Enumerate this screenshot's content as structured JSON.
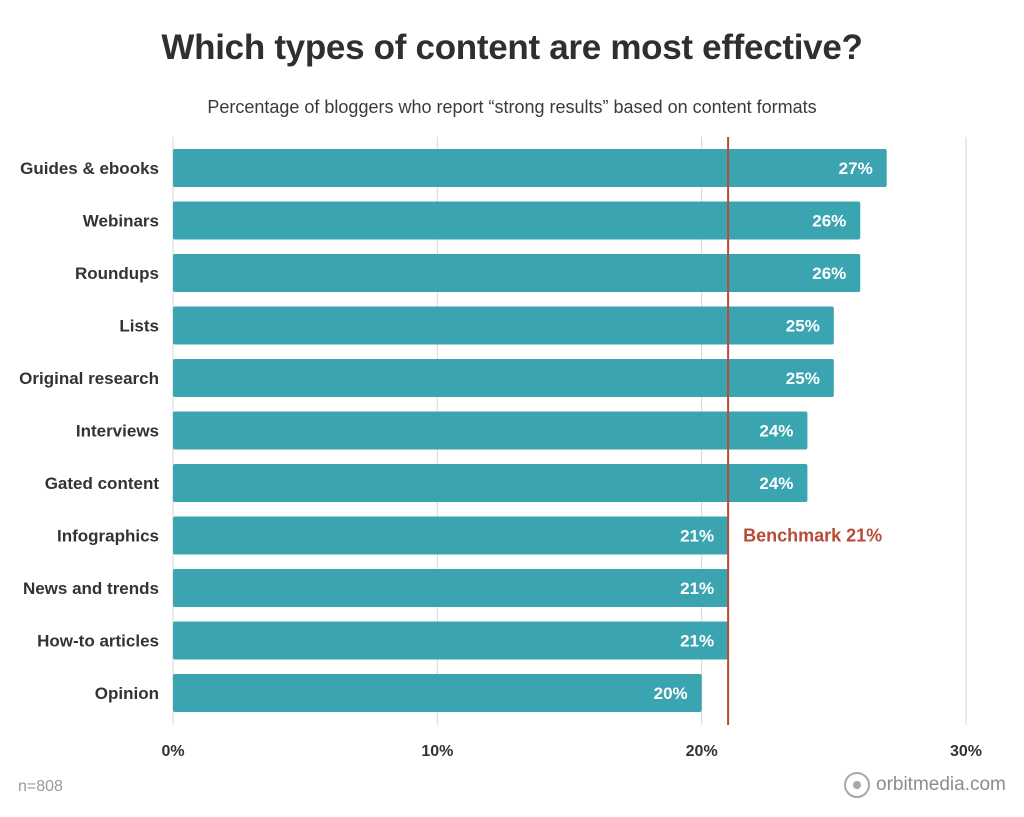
{
  "chart_data": {
    "type": "bar",
    "orientation": "horizontal",
    "title": "Which types of content are most effective?",
    "subtitle": "Percentage of bloggers who report “strong results” based on content formats",
    "categories": [
      "Guides & ebooks",
      "Webinars",
      "Roundups",
      "Lists",
      "Original research",
      "Interviews",
      "Gated content",
      "Infographics",
      "News and trends",
      "How-to articles",
      "Opinion"
    ],
    "values": [
      27,
      26,
      26,
      25,
      25,
      24,
      24,
      21,
      21,
      21,
      20
    ],
    "value_labels": [
      "27%",
      "26%",
      "26%",
      "25%",
      "25%",
      "24%",
      "24%",
      "21%",
      "21%",
      "21%",
      "20%"
    ],
    "xlim": [
      0,
      30
    ],
    "x_ticks": [
      0,
      10,
      20,
      30
    ],
    "x_tick_labels": [
      "0%",
      "10%",
      "20%",
      "30%"
    ],
    "benchmark": {
      "value": 21,
      "label": "Benchmark 21%"
    },
    "grid": true,
    "colors": {
      "bar": "#3aa4b0",
      "benchmark": "#b84a36",
      "grid": "#d6d6d6"
    }
  },
  "footer": {
    "sample_size": "n=808",
    "brand": "orbitmedia.com"
  }
}
